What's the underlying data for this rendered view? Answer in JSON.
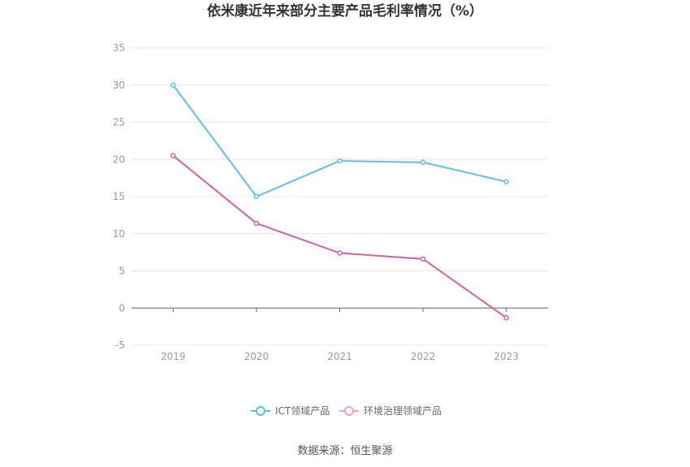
{
  "chart_data": {
    "type": "line",
    "title": "依米康近年来部分主要产品毛利率情况（%）",
    "categories": [
      "2019",
      "2020",
      "2021",
      "2022",
      "2023"
    ],
    "y_ticks": [
      "35",
      "30",
      "25",
      "20",
      "15",
      "10",
      "5",
      "0",
      "-5"
    ],
    "ylim": [
      -5,
      35
    ],
    "grid": true,
    "legend_position": "bottom",
    "series": [
      {
        "name": "ICT领域产品",
        "color": "#5bc0eb",
        "values": [
          30.0,
          15.0,
          19.8,
          19.6,
          17.0
        ]
      },
      {
        "name": "环境治理领域产品",
        "color": "#d060a8",
        "values": [
          20.5,
          11.4,
          7.4,
          6.6,
          -1.3
        ]
      }
    ],
    "legend_colors": [
      "#5bc0eb",
      "#f0a0c8"
    ]
  },
  "source": "数据来源：恒生聚源"
}
